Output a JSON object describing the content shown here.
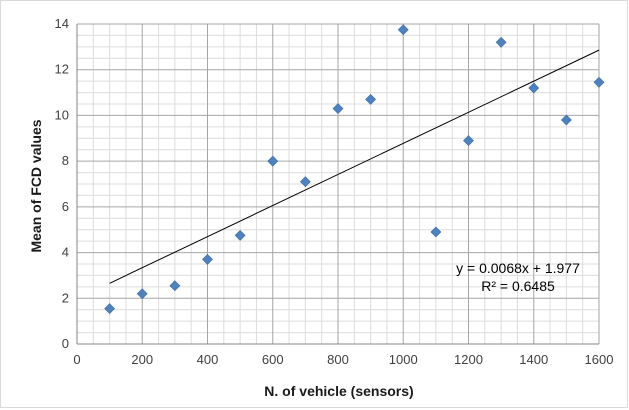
{
  "chart_data": {
    "type": "scatter",
    "xlabel": "N. of vehicle (sensors)",
    "ylabel": "Mean of FCD values",
    "xlim": [
      0,
      1600
    ],
    "ylim": [
      0,
      14
    ],
    "x_major_step": 200,
    "x_minor_step": 50,
    "y_major_step": 2,
    "y_minor_step": 0.5,
    "x_tick_labels": [
      "0",
      "200",
      "400",
      "600",
      "800",
      "1000",
      "1200",
      "1400",
      "1600"
    ],
    "y_tick_labels": [
      "0",
      "2",
      "4",
      "6",
      "8",
      "10",
      "12",
      "14"
    ],
    "grid": true,
    "legend": "none",
    "marker": "diamond",
    "marker_color": "#4f81bd",
    "series": [
      {
        "x": [
          100,
          200,
          300,
          400,
          500,
          600,
          700,
          800,
          900,
          1000,
          1100,
          1200,
          1300,
          1400,
          1500,
          1600
        ],
        "y": [
          1.55,
          2.2,
          2.55,
          3.7,
          4.75,
          8.0,
          7.1,
          10.3,
          10.7,
          13.75,
          4.9,
          8.9,
          13.2,
          11.2,
          9.8,
          11.45
        ]
      }
    ],
    "trendline": {
      "type": "linear",
      "slope": 0.0068,
      "intercept": 1.977,
      "x_range": [
        100,
        1600
      ],
      "color": "#000000",
      "equation_label": "y = 0.0068x + 1.977",
      "r2_label": "R² = 0.6485"
    }
  }
}
